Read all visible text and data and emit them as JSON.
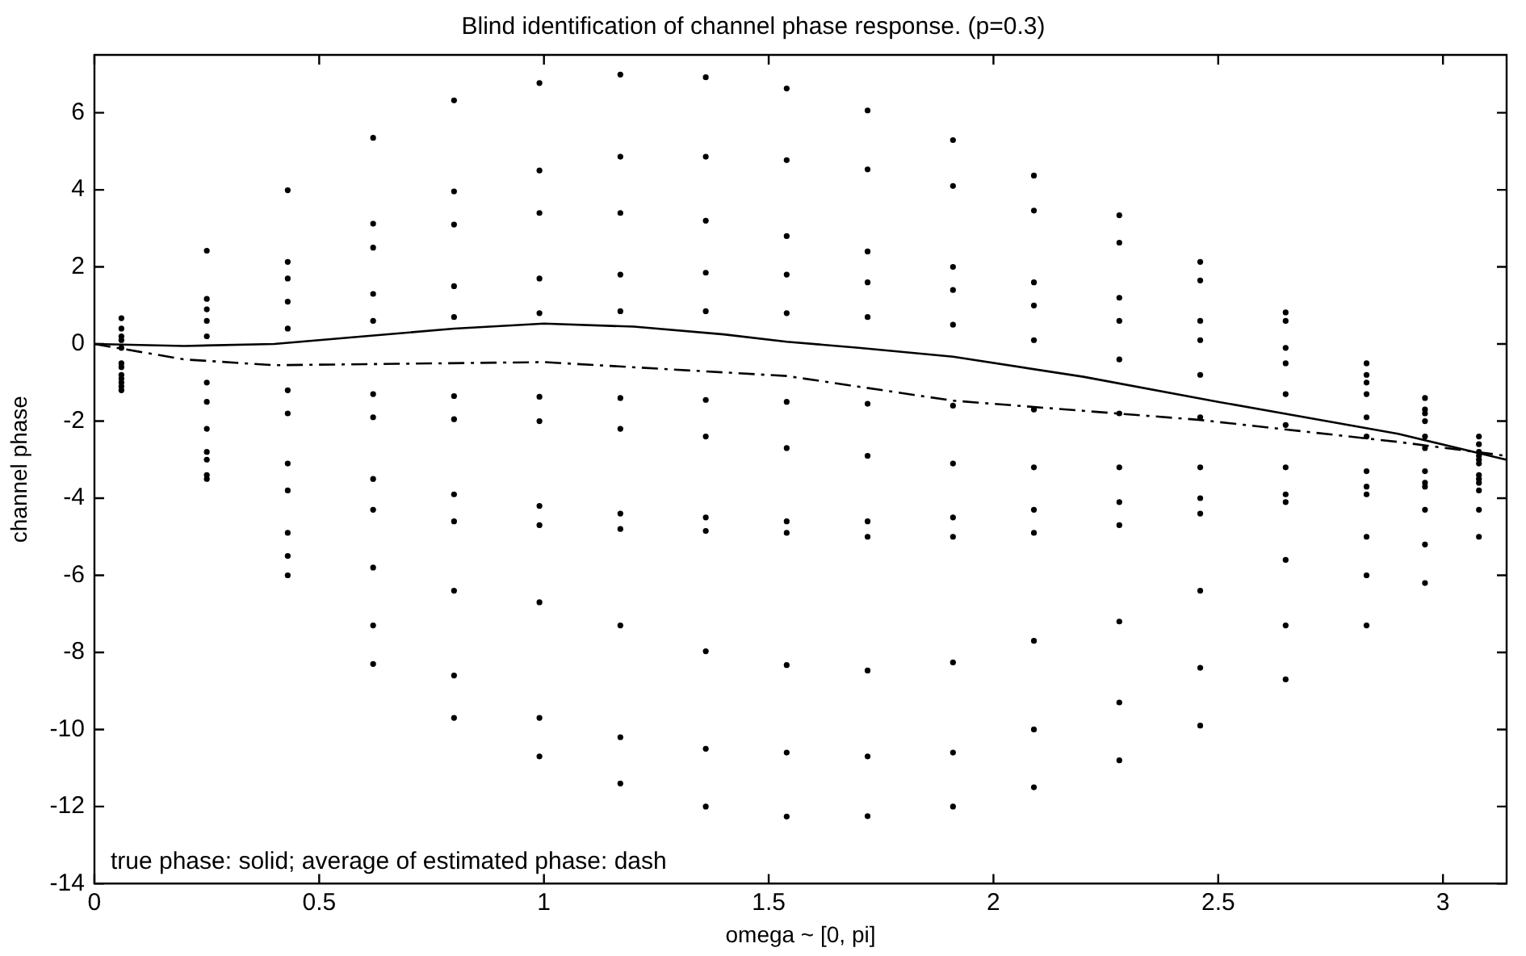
{
  "chart_data": {
    "type": "scatter",
    "title": "Blind identification of channel phase response. (p=0.3)",
    "xlabel": "omega ~ [0, pi]",
    "ylabel": "channel phase",
    "annotations": [
      "true phase: solid; average of estimated phase: dash"
    ],
    "xlim": [
      0,
      3.1416
    ],
    "xticks": [
      0,
      0.5,
      1,
      1.5,
      2,
      2.5,
      3
    ],
    "ylim": [
      -14,
      7.5
    ],
    "yticks": [
      -14,
      -12,
      -10,
      -8,
      -6,
      -4,
      -2,
      0,
      2,
      4,
      6
    ],
    "grid": false,
    "legend": false,
    "marker": "circle",
    "x": [
      0.06,
      0.25,
      0.43,
      0.62,
      0.8,
      0.99,
      1.17,
      1.36,
      1.54,
      1.72,
      1.91,
      2.09,
      2.28,
      2.46,
      2.65,
      2.83,
      2.96,
      3.08
    ],
    "series": [
      {
        "color": "#000000",
        "values": [
          0.67,
          2.42,
          3.99,
          5.35,
          6.32,
          6.77,
          6.99,
          6.92,
          6.63,
          6.06,
          5.29,
          4.37,
          3.34,
          2.13,
          0.82,
          -0.5,
          -1.4,
          -2.4
        ]
      },
      {
        "color": "#000000",
        "values": [
          0.4,
          1.17,
          2.13,
          3.12,
          3.96,
          4.5,
          4.86,
          4.86,
          4.77,
          4.53,
          4.1,
          3.46,
          2.63,
          1.65,
          0.6,
          -0.8,
          -1.8,
          -2.8
        ]
      },
      {
        "color": "#000000",
        "values": [
          0.2,
          0.9,
          1.7,
          2.5,
          3.1,
          3.4,
          3.4,
          3.2,
          2.8,
          2.4,
          2.0,
          1.6,
          1.2,
          0.6,
          -0.1,
          -1.0,
          -1.7,
          -2.6
        ]
      },
      {
        "color": "#000000",
        "values": [
          0.1,
          0.6,
          1.1,
          1.3,
          1.5,
          1.7,
          1.8,
          1.85,
          1.8,
          1.6,
          1.4,
          1.0,
          0.6,
          0.1,
          -0.5,
          -1.3,
          -2.0,
          -2.9
        ]
      },
      {
        "color": "#000000",
        "values": [
          -0.1,
          0.2,
          0.4,
          0.6,
          0.7,
          0.8,
          0.85,
          0.85,
          0.8,
          0.7,
          0.5,
          0.1,
          -0.4,
          -0.8,
          -1.3,
          -1.9,
          -2.4,
          -3.0
        ]
      },
      {
        "color": "#000000",
        "values": [
          -0.5,
          -1.0,
          -1.2,
          -1.3,
          -1.35,
          -1.37,
          -1.4,
          -1.45,
          -1.5,
          -1.55,
          -1.6,
          -1.7,
          -1.8,
          -1.9,
          -2.1,
          -2.4,
          -2.7,
          -3.1
        ]
      },
      {
        "color": "#000000",
        "values": [
          -0.6,
          -1.5,
          -1.8,
          -1.9,
          -1.95,
          -2.0,
          -2.2,
          -2.4,
          -2.7,
          -2.9,
          -3.1,
          -3.2,
          -3.2,
          -3.2,
          -3.2,
          -3.3,
          -3.3,
          -3.4
        ]
      },
      {
        "color": "#000000",
        "values": [
          -0.8,
          -2.2,
          -3.1,
          -3.5,
          -3.9,
          -4.2,
          -4.4,
          -4.5,
          -4.6,
          -4.6,
          -4.5,
          -4.3,
          -4.1,
          -4.0,
          -3.9,
          -3.7,
          -3.6,
          -3.5
        ]
      },
      {
        "color": "#000000",
        "values": [
          -0.9,
          -2.8,
          -3.8,
          -4.3,
          -4.6,
          -4.7,
          -4.8,
          -4.85,
          -4.9,
          -5.0,
          -5.0,
          -4.9,
          -4.7,
          -4.4,
          -4.1,
          -3.9,
          -3.7,
          -3.6
        ]
      },
      {
        "color": "#000000",
        "values": [
          -1.0,
          -3.4,
          -4.9,
          -5.8,
          -6.4,
          -6.7,
          -7.3,
          -7.97,
          -8.33,
          -8.47,
          -8.26,
          -7.7,
          -7.2,
          -6.4,
          -5.6,
          -5.0,
          -4.3,
          -3.8
        ]
      },
      {
        "color": "#000000",
        "values": [
          -1.1,
          -3.0,
          -5.5,
          -7.3,
          -8.6,
          -9.7,
          -10.2,
          -10.5,
          -10.6,
          -10.7,
          -10.6,
          -10.0,
          -9.3,
          -8.4,
          -7.3,
          -6.0,
          -5.2,
          -4.3
        ]
      },
      {
        "color": "#000000",
        "values": [
          -1.2,
          -3.5,
          -6.0,
          -8.3,
          -9.7,
          -10.7,
          -11.4,
          -12.0,
          -12.26,
          -12.25,
          -12.0,
          -11.5,
          -10.8,
          -9.9,
          -8.7,
          -7.3,
          -6.2,
          -5.0
        ]
      },
      {
        "type": "line",
        "marker": "none",
        "line_style": "solid",
        "color": "#000000",
        "x": [
          0,
          0.2,
          0.4,
          0.6,
          0.8,
          1.0,
          1.2,
          1.4,
          1.54,
          1.7,
          1.91,
          2.2,
          2.5,
          2.9,
          3.14
        ],
        "values": [
          0,
          -0.05,
          0,
          0.2,
          0.4,
          0.53,
          0.45,
          0.25,
          0.06,
          -0.1,
          -0.33,
          -0.85,
          -1.5,
          -2.33,
          -3.0
        ]
      },
      {
        "type": "line",
        "marker": "none",
        "line_style": "dashed",
        "color": "#000000",
        "x": [
          0,
          0.1,
          0.2,
          0.4,
          1.0,
          1.54,
          1.91,
          2.46,
          2.9,
          3.14
        ],
        "values": [
          0,
          -0.2,
          -0.4,
          -0.55,
          -0.47,
          -0.83,
          -1.47,
          -1.97,
          -2.54,
          -2.9
        ]
      }
    ]
  }
}
